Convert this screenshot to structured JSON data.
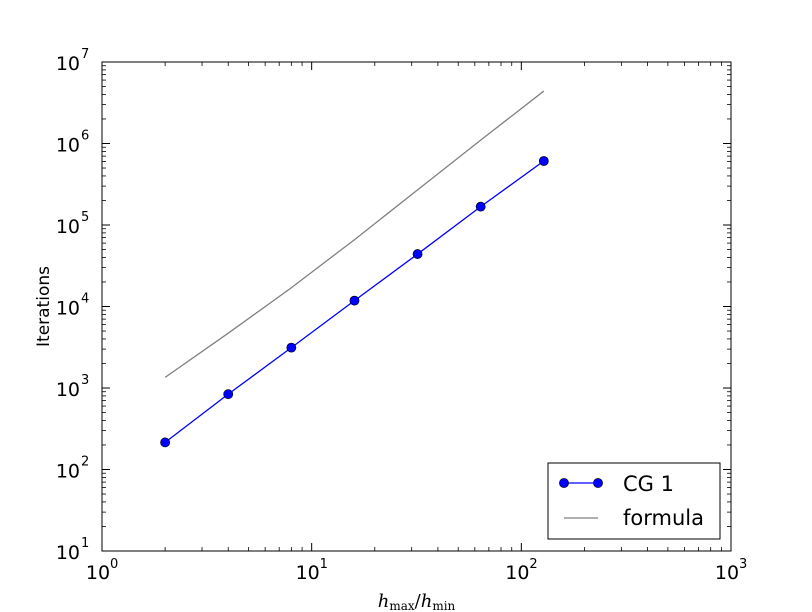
{
  "chart_data": {
    "type": "line",
    "xscale": "log",
    "yscale": "log",
    "xlim": [
      1,
      1000
    ],
    "ylim": [
      10,
      10000000
    ],
    "x_ticks": [
      {
        "base": "10",
        "exp": "0"
      },
      {
        "base": "10",
        "exp": "1"
      },
      {
        "base": "10",
        "exp": "2"
      },
      {
        "base": "10",
        "exp": "3"
      }
    ],
    "y_ticks": [
      {
        "base": "10",
        "exp": "1"
      },
      {
        "base": "10",
        "exp": "2"
      },
      {
        "base": "10",
        "exp": "3"
      },
      {
        "base": "10",
        "exp": "4"
      },
      {
        "base": "10",
        "exp": "5"
      },
      {
        "base": "10",
        "exp": "6"
      },
      {
        "base": "10",
        "exp": "7"
      }
    ],
    "xlabel": {
      "h1": "h",
      "sub1": "max",
      "sep": "/",
      "h2": "h",
      "sub2": "min"
    },
    "ylabel": "Iterations",
    "grid": false,
    "legend_position": "lower-right",
    "series": [
      {
        "name": "CG 1",
        "color": "#0000ff",
        "marker": "circle",
        "x": [
          2,
          4,
          8,
          16,
          32,
          64,
          128
        ],
        "y": [
          215,
          840,
          3130,
          11800,
          44000,
          168000,
          610000
        ]
      },
      {
        "name": "formula",
        "color": "#808080",
        "marker": "none",
        "x": [
          2,
          4,
          8,
          16,
          32,
          64,
          128
        ],
        "y": [
          1350,
          4700,
          17000,
          66000,
          270000,
          1100000,
          4400000
        ]
      }
    ]
  }
}
